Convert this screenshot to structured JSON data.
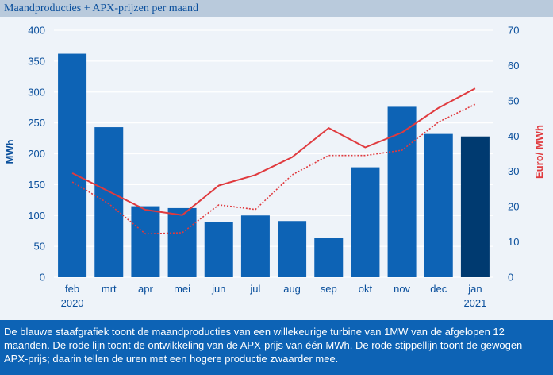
{
  "header": {
    "title": "Maandproducties + APX-prijzen per maand"
  },
  "caption": {
    "text": "De blauwe staafgrafiek toont de maandproducties van een willekeurige turbine van 1MW van de afgelopen 12 maanden. De rode lijn toont de ontwikkeling van de APX-prijs van één MWh. De rode stippellijn toont de gewogen APX-prijs; daarin tellen de uren met een hogere productie zwaarder mee."
  },
  "colors": {
    "bar": "#0d63b5",
    "bar_highlight": "#003a70",
    "line": "#e03a3e",
    "left_axis_label": "#0a4f9c",
    "right_axis_label": "#e03a3e",
    "grid": "#ffffff"
  },
  "chart_data": {
    "type": "bar",
    "categories": [
      "feb",
      "mrt",
      "apr",
      "mei",
      "jun",
      "jul",
      "aug",
      "sep",
      "okt",
      "nov",
      "dec",
      "jan"
    ],
    "category_years": [
      "2020",
      "",
      "",
      "",
      "",
      "",
      "",
      "",
      "",
      "",
      "",
      "2021"
    ],
    "ylabel_left": "MWh",
    "ylabel_right": "Euro/ MWh",
    "ylim_left": [
      0,
      400
    ],
    "yticks_left": [
      0,
      50,
      100,
      150,
      200,
      250,
      300,
      350,
      400
    ],
    "ylim_right": [
      0,
      70
    ],
    "yticks_right": [
      0,
      10,
      20,
      30,
      40,
      50,
      60,
      70
    ],
    "grid": true,
    "series": [
      {
        "axis": "left",
        "kind": "bar",
        "values": [
          362,
          243,
          115,
          112,
          89,
          100,
          91,
          64,
          178,
          276,
          232,
          228
        ]
      },
      {
        "axis": "right",
        "kind": "line",
        "style": "solid",
        "values": [
          29.5,
          24.3,
          19.1,
          17.6,
          26.0,
          29.0,
          34.0,
          42.3,
          36.8,
          41.0,
          48.0,
          53.5
        ]
      },
      {
        "axis": "right",
        "kind": "line",
        "style": "dotted",
        "values": [
          27.0,
          20.8,
          12.3,
          12.6,
          20.5,
          19.2,
          29.0,
          34.5,
          34.5,
          36.0,
          44.0,
          49.0
        ]
      }
    ]
  }
}
